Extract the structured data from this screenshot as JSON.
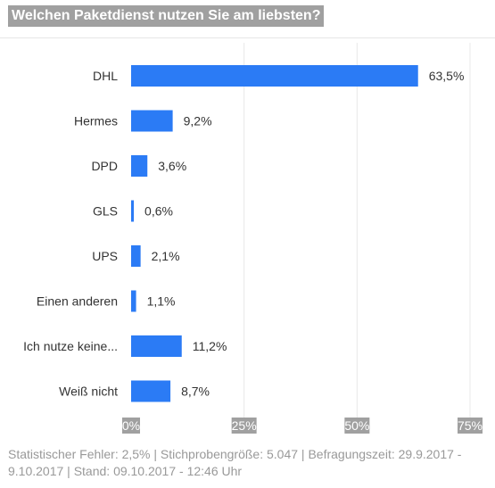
{
  "title": "Welchen Paketdienst nutzen Sie am liebsten?",
  "footer": "Statistischer Fehler: 2,5% | Stichprobengröße: 5.047 | Befragungszeit: 29.9.2017 - 9.10.2017 | Stand: 09.10.2017 - 12:46 Uhr",
  "colors": {
    "bar": "#2b7bf5",
    "grid": "#e8e8e8",
    "tick_label_bg": "#a0a0a0"
  },
  "chart_data": {
    "type": "bar",
    "orientation": "horizontal",
    "categories": [
      "DHL",
      "Hermes",
      "DPD",
      "GLS",
      "UPS",
      "Einen anderen",
      "Ich nutze keine...",
      "Weiß nicht"
    ],
    "values": [
      63.5,
      9.2,
      3.6,
      0.6,
      2.1,
      1.1,
      11.2,
      8.7
    ],
    "value_labels": [
      "63,5%",
      "9,2%",
      "3,6%",
      "0,6%",
      "2,1%",
      "1,1%",
      "11,2%",
      "8,7%"
    ],
    "xlim": [
      0,
      75
    ],
    "x_ticks": [
      0,
      25,
      50,
      75
    ],
    "x_tick_labels": [
      "0%",
      "25%",
      "50%",
      "75%"
    ],
    "grid": true
  }
}
